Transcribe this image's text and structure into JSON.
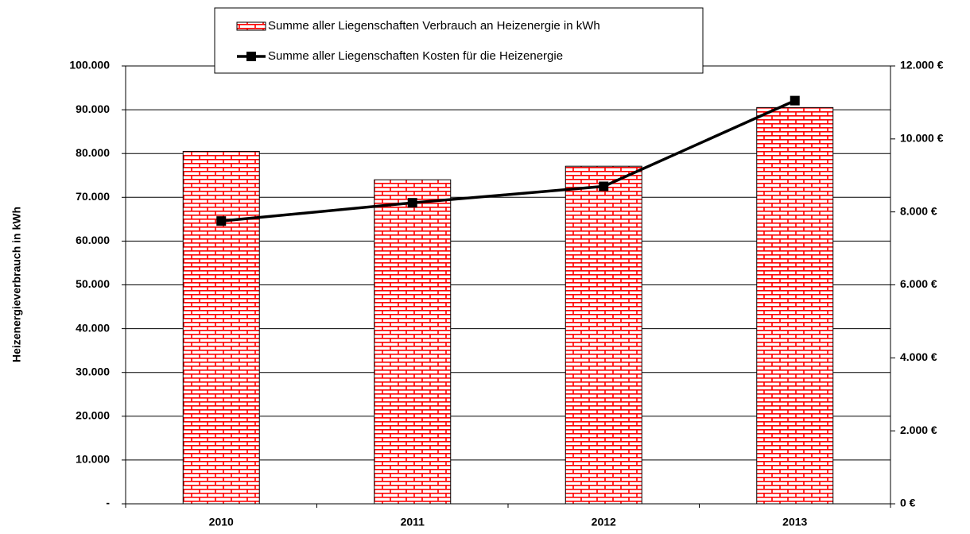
{
  "chart_data": {
    "type": "combo",
    "y_label": "Heizenergieverbrauch in kWh",
    "categories": [
      "2010",
      "2011",
      "2012",
      "2013"
    ],
    "series": [
      {
        "name": "Summe aller Liegenschaften Verbrauch an Heizenergie in kWh",
        "type": "bar",
        "color": "#ff0000",
        "values": [
          80500,
          74000,
          77100,
          90500
        ]
      },
      {
        "name": "Summe aller Liegenschaften Kosten für die Heizenergie",
        "type": "line",
        "axis": "y2",
        "color": "#000000",
        "values": [
          7750,
          8250,
          8700,
          11050
        ]
      }
    ],
    "ylim": [
      0,
      100000
    ],
    "yticks": [
      {
        "value": 0,
        "label": "-"
      },
      {
        "value": 10000,
        "label": "10.000"
      },
      {
        "value": 20000,
        "label": "20.000"
      },
      {
        "value": 30000,
        "label": "30.000"
      },
      {
        "value": 40000,
        "label": "40.000"
      },
      {
        "value": 50000,
        "label": "50.000"
      },
      {
        "value": 60000,
        "label": "60.000"
      },
      {
        "value": 70000,
        "label": "70.000"
      },
      {
        "value": 80000,
        "label": "80.000"
      },
      {
        "value": 90000,
        "label": "90.000"
      },
      {
        "value": 100000,
        "label": "100.000"
      }
    ],
    "y2lim": [
      0,
      12000
    ],
    "y2ticks": [
      {
        "value": 0,
        "label": "0 €"
      },
      {
        "value": 2000,
        "label": "2.000 €"
      },
      {
        "value": 4000,
        "label": "4.000 €"
      },
      {
        "value": 6000,
        "label": "6.000 €"
      },
      {
        "value": 8000,
        "label": "8.000 €"
      },
      {
        "value": 10000,
        "label": "10.000 €"
      },
      {
        "value": 12000,
        "label": "12.000 €"
      }
    ],
    "grid": true
  }
}
